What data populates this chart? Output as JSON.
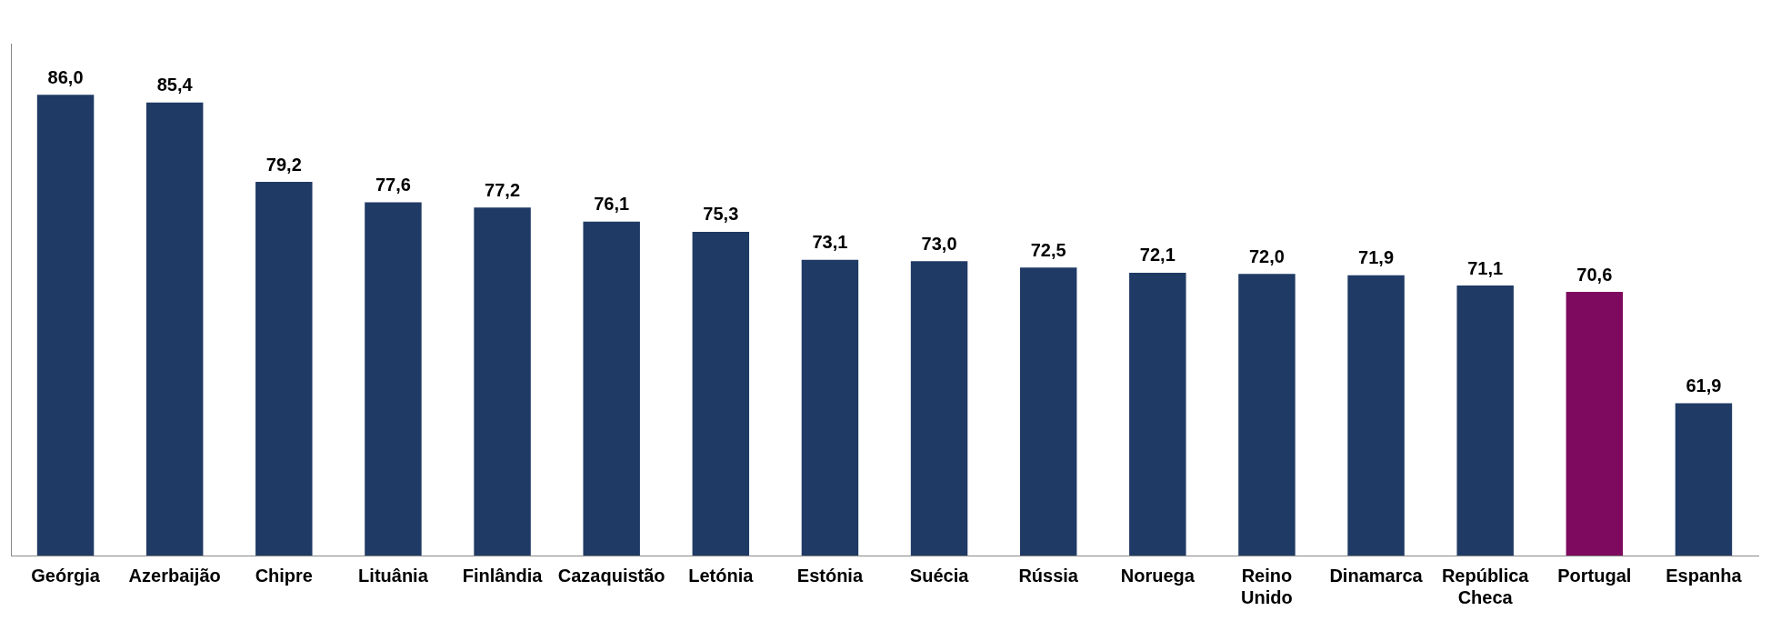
{
  "chart_data": {
    "type": "bar",
    "categories": [
      "Geórgia",
      "Azerbaijão",
      "Chipre",
      "Lituânia",
      "Finlândia",
      "Cazaquistão",
      "Letónia",
      "Estónia",
      "Suécia",
      "Rússia",
      "Noruega",
      "Reino Unido",
      "Dinamarca",
      "República Checa",
      "Portugal",
      "Espanha"
    ],
    "values": [
      86.0,
      85.4,
      79.2,
      77.6,
      77.2,
      76.1,
      75.3,
      73.1,
      73.0,
      72.5,
      72.1,
      72.0,
      71.9,
      71.1,
      70.6,
      61.9
    ],
    "colors": [
      "#1f3a64",
      "#1f3a64",
      "#1f3a64",
      "#1f3a64",
      "#1f3a64",
      "#1f3a64",
      "#1f3a64",
      "#1f3a64",
      "#1f3a64",
      "#1f3a64",
      "#1f3a64",
      "#1f3a64",
      "#1f3a64",
      "#1f3a64",
      "#7d0a5e",
      "#1f3a64"
    ],
    "value_labels": [
      "86,0",
      "85,4",
      "79,2",
      "77,6",
      "77,2",
      "76,1",
      "75,3",
      "73,1",
      "73,0",
      "72,5",
      "72,1",
      "72,0",
      "71,9",
      "71,1",
      "70,6",
      "61,9"
    ],
    "ylim": [
      50,
      90
    ],
    "tick_labels": "x",
    "grid": false,
    "legend": false
  }
}
